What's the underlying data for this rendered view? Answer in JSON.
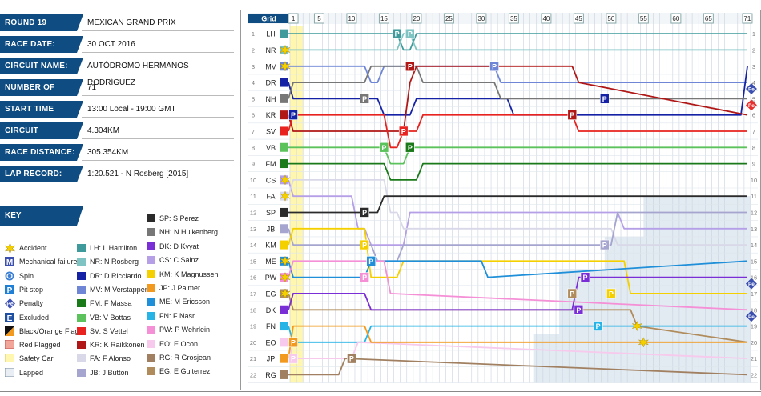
{
  "info": [
    {
      "label": "ROUND 19",
      "value": "MEXICAN GRAND PRIX"
    },
    {
      "label": "RACE DATE:",
      "value": "30 OCT 2016"
    },
    {
      "label": "CIRCUIT NAME:",
      "value": "AUTÓDROMO HERMANOS RODRÍGUEZ"
    },
    {
      "label": "NUMBER OF LAPS:",
      "value": "71"
    },
    {
      "label": "START TIME",
      "value": "13:00 Local - 19:00 GMT"
    },
    {
      "label": "CIRCUIT LENGTH:",
      "value": "4.304KM"
    },
    {
      "label": "RACE DISTANCE:",
      "value": "305.354KM"
    },
    {
      "label": "LAP RECORD:",
      "value": "1:20.521 - N Rosberg [2015]"
    }
  ],
  "key": {
    "title": "KEY",
    "items": [
      {
        "label": "Accident",
        "icon": "accident-icon"
      },
      {
        "label": "Mechanical failure",
        "icon": "mechanical-icon"
      },
      {
        "label": "Spin",
        "icon": "spin-icon"
      },
      {
        "label": "Pit stop",
        "icon": "pit-stop-icon"
      },
      {
        "label": "Penalty",
        "icon": "penalty-icon"
      },
      {
        "label": "Excluded",
        "icon": "excluded-icon"
      },
      {
        "label": "Black/Orange Flag",
        "icon": "black-orange-flag-icon"
      },
      {
        "label": "Red Flagged",
        "icon": "red-flag-icon"
      },
      {
        "label": "Safety Car",
        "icon": "safety-car-icon"
      },
      {
        "label": "Lapped",
        "icon": "lapped-icon"
      }
    ]
  },
  "colors": {
    "LH": "#3f9b9b",
    "NR": "#7fc3c3",
    "DR": "#1522a6",
    "MV": "#6f86d6",
    "FM": "#1a7a1a",
    "VB": "#5cc35c",
    "SV": "#e8231f",
    "KR": "#b01717",
    "FA": "#d8d8e8",
    "JB": "#a5a5cf",
    "SP": "#2b2b2b",
    "NH": "#777777",
    "DK": "#7a2fd6",
    "CS": "#b5a0e8",
    "KM": "#f5d000",
    "JP": "#f29a1f",
    "ME": "#1e8fd8",
    "FN": "#26b3e6",
    "PW": "#f58fd6",
    "EO": "#f7c9ec",
    "RG": "#a08060",
    "EG": "#b08c5c",
    "pit": "#1f7fd4",
    "penalty_red": "#e53030",
    "penalty_blue": "#3a4fb0",
    "safety": "#fff6b0",
    "lapped": "#d6e1ec"
  },
  "driver_key": [
    {
      "code": "LH",
      "label": "LH: L Hamilton"
    },
    {
      "code": "NR",
      "label": "NR: N Rosberg"
    },
    {
      "code": "DR",
      "label": "DR: D Ricciardo"
    },
    {
      "code": "MV",
      "label": "MV: M Verstappen"
    },
    {
      "code": "FM",
      "label": "FM: F Massa"
    },
    {
      "code": "VB",
      "label": "VB: V Bottas"
    },
    {
      "code": "SV",
      "label": "SV: S Vettel"
    },
    {
      "code": "KR",
      "label": "KR: K Raikkonen"
    },
    {
      "code": "FA",
      "label": "FA: F Alonso"
    },
    {
      "code": "JB",
      "label": "JB: J Button"
    },
    {
      "code": "SP",
      "label": "SP: S Perez"
    },
    {
      "code": "NH",
      "label": "NH: N Hulkenberg"
    },
    {
      "code": "DK",
      "label": "DK: D Kvyat"
    },
    {
      "code": "CS",
      "label": "CS: C Sainz"
    },
    {
      "code": "KM",
      "label": "KM: K Magnussen"
    },
    {
      "code": "JP",
      "label": "JP: J Palmer"
    },
    {
      "code": "ME",
      "label": "ME: M Ericsson"
    },
    {
      "code": "FN",
      "label": "FN: F Nasr"
    },
    {
      "code": "PW",
      "label": "PW: P Wehrlein"
    },
    {
      "code": "EO",
      "label": "EO: E Ocon"
    },
    {
      "code": "RG",
      "label": "RG: R Grosjean"
    },
    {
      "code": "EG",
      "label": "EG: E Guiterrez"
    }
  ],
  "chart_data": {
    "type": "line",
    "title": "",
    "xlabel": "",
    "ylabel": "",
    "grid_label": "Grid",
    "lap_ticks": [
      1,
      5,
      10,
      15,
      20,
      25,
      30,
      35,
      40,
      45,
      50,
      55,
      60,
      65,
      71
    ],
    "laps": 71,
    "positions": [
      1,
      2,
      3,
      4,
      5,
      6,
      7,
      8,
      9,
      10,
      11,
      12,
      13,
      14,
      15,
      16,
      17,
      18,
      19,
      20,
      21,
      22
    ],
    "grid": [
      "LH",
      "NR",
      "MV",
      "DR",
      "NH",
      "KR",
      "SV",
      "VB",
      "FM",
      "CS",
      "FA",
      "SP",
      "JB",
      "KM",
      "ME",
      "PW",
      "EG",
      "DK",
      "FN",
      "EO",
      "JP",
      "RG"
    ],
    "safety_car_laps": [
      1,
      2
    ],
    "series": [
      {
        "name": "LH",
        "waypoints": [
          [
            0,
            1
          ],
          [
            17,
            1
          ],
          [
            18,
            2
          ],
          [
            19,
            2
          ],
          [
            20,
            1
          ],
          [
            71,
            1
          ]
        ]
      },
      {
        "name": "NR",
        "waypoints": [
          [
            0,
            2
          ],
          [
            17,
            2
          ],
          [
            18,
            1
          ],
          [
            19,
            1
          ],
          [
            20,
            2
          ],
          [
            71,
            2
          ]
        ]
      },
      {
        "name": "MV",
        "waypoints": [
          [
            0,
            3
          ],
          [
            12,
            3
          ],
          [
            13,
            4
          ],
          [
            14,
            4
          ],
          [
            15,
            3
          ],
          [
            32,
            3
          ],
          [
            33,
            4
          ],
          [
            71,
            4
          ]
        ]
      },
      {
        "name": "DR",
        "waypoints": [
          [
            0,
            4
          ],
          [
            1,
            5
          ],
          [
            14,
            5
          ],
          [
            15,
            6
          ],
          [
            19,
            6
          ],
          [
            20,
            5
          ],
          [
            34,
            5
          ],
          [
            35,
            6
          ],
          [
            70,
            6
          ],
          [
            71,
            3
          ]
        ]
      },
      {
        "name": "NH",
        "waypoints": [
          [
            0,
            5
          ],
          [
            1,
            4
          ],
          [
            12,
            4
          ],
          [
            13,
            3
          ],
          [
            20,
            3
          ],
          [
            21,
            4
          ],
          [
            32,
            4
          ],
          [
            33,
            5
          ],
          [
            71,
            5
          ]
        ]
      },
      {
        "name": "KR",
        "waypoints": [
          [
            0,
            6
          ],
          [
            1,
            7
          ],
          [
            18,
            7
          ],
          [
            19,
            4
          ],
          [
            20,
            3
          ],
          [
            32,
            3
          ],
          [
            33,
            3
          ],
          [
            44,
            3
          ],
          [
            45,
            4
          ],
          [
            71,
            6
          ]
        ]
      },
      {
        "name": "SV",
        "waypoints": [
          [
            0,
            7
          ],
          [
            1,
            6
          ],
          [
            15,
            6
          ],
          [
            16,
            8
          ],
          [
            17,
            8
          ],
          [
            18,
            7
          ],
          [
            20,
            7
          ],
          [
            21,
            6
          ],
          [
            44,
            6
          ],
          [
            45,
            7
          ],
          [
            71,
            7
          ]
        ]
      },
      {
        "name": "VB",
        "waypoints": [
          [
            0,
            8
          ],
          [
            15,
            8
          ],
          [
            16,
            9
          ],
          [
            18,
            9
          ],
          [
            19,
            8
          ],
          [
            71,
            8
          ]
        ]
      },
      {
        "name": "FM",
        "waypoints": [
          [
            0,
            9
          ],
          [
            15,
            9
          ],
          [
            16,
            10
          ],
          [
            20,
            10
          ],
          [
            21,
            9
          ],
          [
            71,
            9
          ]
        ]
      },
      {
        "name": "CS",
        "waypoints": [
          [
            0,
            10
          ],
          [
            1,
            11
          ],
          [
            10,
            11
          ],
          [
            11,
            13
          ],
          [
            12,
            13
          ],
          [
            13,
            14
          ],
          [
            18,
            14
          ],
          [
            19,
            12
          ],
          [
            51,
            12
          ],
          [
            52,
            13
          ],
          [
            71,
            13
          ]
        ]
      },
      {
        "name": "FA",
        "waypoints": [
          [
            0,
            11
          ],
          [
            1,
            10
          ],
          [
            15,
            10
          ],
          [
            16,
            12
          ],
          [
            17,
            12
          ],
          [
            18,
            13
          ],
          [
            50,
            13
          ],
          [
            51,
            14
          ],
          [
            71,
            14
          ]
        ]
      },
      {
        "name": "SP",
        "waypoints": [
          [
            0,
            12
          ],
          [
            1,
            12
          ],
          [
            14,
            12
          ],
          [
            15,
            11
          ],
          [
            71,
            11
          ]
        ]
      },
      {
        "name": "JB",
        "waypoints": [
          [
            0,
            13
          ],
          [
            1,
            14
          ],
          [
            13,
            14
          ],
          [
            14,
            15
          ],
          [
            17,
            15
          ],
          [
            18,
            14
          ],
          [
            50,
            14
          ],
          [
            51,
            12
          ],
          [
            71,
            12
          ]
        ]
      },
      {
        "name": "KM",
        "waypoints": [
          [
            0,
            14
          ],
          [
            1,
            13
          ],
          [
            12,
            13
          ],
          [
            13,
            16
          ],
          [
            17,
            16
          ],
          [
            18,
            15
          ],
          [
            52,
            15
          ],
          [
            53,
            17
          ],
          [
            71,
            17
          ]
        ]
      },
      {
        "name": "ME",
        "waypoints": [
          [
            0,
            15
          ],
          [
            1,
            16
          ],
          [
            12,
            16
          ],
          [
            13,
            15
          ],
          [
            30,
            15
          ],
          [
            31,
            16
          ],
          [
            71,
            15
          ]
        ]
      },
      {
        "name": "PW",
        "waypoints": [
          [
            0,
            16
          ],
          [
            1,
            15
          ],
          [
            15,
            15
          ],
          [
            16,
            17
          ],
          [
            71,
            18
          ]
        ]
      },
      {
        "name": "EG",
        "waypoints": [
          [
            0,
            17
          ],
          [
            1,
            18
          ],
          [
            53,
            18
          ],
          [
            54,
            19
          ],
          [
            71,
            20
          ]
        ]
      },
      {
        "name": "DK",
        "waypoints": [
          [
            0,
            18
          ],
          [
            1,
            17
          ],
          [
            12,
            17
          ],
          [
            13,
            18
          ],
          [
            44,
            18
          ],
          [
            45,
            16
          ],
          [
            71,
            16
          ]
        ]
      },
      {
        "name": "FN",
        "waypoints": [
          [
            0,
            19
          ],
          [
            1,
            20
          ],
          [
            12,
            20
          ],
          [
            13,
            19
          ],
          [
            71,
            19
          ]
        ]
      },
      {
        "name": "EO",
        "waypoints": [
          [
            0,
            20
          ],
          [
            1,
            21
          ],
          [
            10,
            21
          ],
          [
            11,
            20
          ],
          [
            71,
            21
          ]
        ]
      },
      {
        "name": "JP",
        "waypoints": [
          [
            0,
            21
          ],
          [
            1,
            19
          ],
          [
            12,
            19
          ],
          [
            13,
            20
          ],
          [
            71,
            20
          ]
        ]
      },
      {
        "name": "RG",
        "waypoints": [
          [
            0,
            22
          ],
          [
            1,
            22
          ],
          [
            8,
            22
          ],
          [
            9,
            21
          ],
          [
            71,
            22
          ]
        ]
      }
    ],
    "pit_stops": [
      {
        "driver": "LH",
        "lap": 17,
        "pos": 1
      },
      {
        "driver": "NR",
        "lap": 19,
        "pos": 1
      },
      {
        "driver": "KR",
        "lap": 19,
        "pos": 3
      },
      {
        "driver": "MV",
        "lap": 32,
        "pos": 3
      },
      {
        "driver": "NH",
        "lap": 12,
        "pos": 5
      },
      {
        "driver": "DR",
        "lap": 1,
        "pos": 6
      },
      {
        "driver": "KR",
        "lap": 44,
        "pos": 6
      },
      {
        "driver": "SV",
        "lap": 18,
        "pos": 7
      },
      {
        "driver": "VB",
        "lap": 15,
        "pos": 8
      },
      {
        "driver": "FM",
        "lap": 19,
        "pos": 8
      },
      {
        "driver": "DR",
        "lap": 49,
        "pos": 5
      },
      {
        "driver": "SP",
        "lap": 12,
        "pos": 12
      },
      {
        "driver": "JB",
        "lap": 49,
        "pos": 14
      },
      {
        "driver": "KM",
        "lap": 12,
        "pos": 14
      },
      {
        "driver": "ME",
        "lap": 13,
        "pos": 15
      },
      {
        "driver": "PW",
        "lap": 12,
        "pos": 16
      },
      {
        "driver": "DK",
        "lap": 46,
        "pos": 16
      },
      {
        "driver": "EG",
        "lap": 44,
        "pos": 17
      },
      {
        "driver": "KM",
        "lap": 50,
        "pos": 17
      },
      {
        "driver": "DK",
        "lap": 45,
        "pos": 18
      },
      {
        "driver": "FN",
        "lap": 48,
        "pos": 19
      },
      {
        "driver": "JP",
        "lap": 1,
        "pos": 20
      },
      {
        "driver": "EO",
        "lap": 1,
        "pos": 21
      },
      {
        "driver": "RG",
        "lap": 10,
        "pos": 21
      }
    ],
    "penalties": [
      {
        "driver": "SV",
        "lap": 71,
        "pos": 5,
        "kind": "red"
      },
      {
        "driver": "MV",
        "lap": 71,
        "pos": 4,
        "kind": "blue"
      },
      {
        "driver": "ME",
        "lap": 71,
        "pos": 16,
        "kind": "blue"
      },
      {
        "driver": "DK",
        "lap": 71,
        "pos": 18,
        "kind": "blue"
      }
    ]
  }
}
